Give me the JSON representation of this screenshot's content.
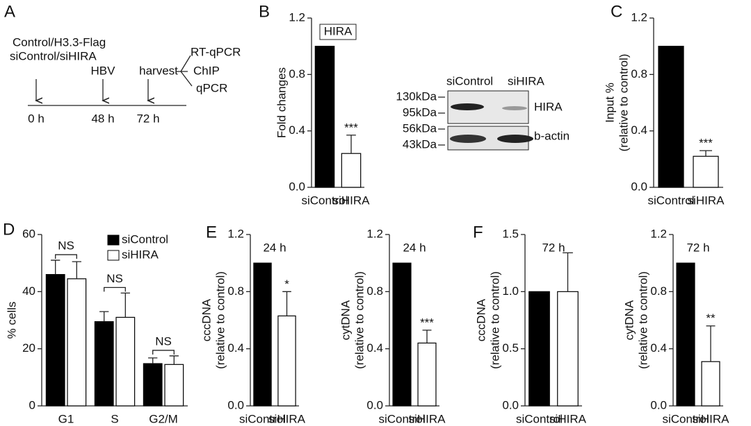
{
  "panels": [
    "A",
    "B",
    "C",
    "D",
    "E",
    "F"
  ],
  "diagram": {
    "conditions": [
      "Control/H3.3-Flag",
      "siControl/siHIRA"
    ],
    "events": [
      "HBV",
      "harvest"
    ],
    "outputs": [
      "RT-qPCR",
      "ChIP",
      "qPCR"
    ],
    "times": [
      "0 h",
      "48 h",
      "72 h"
    ]
  },
  "blot": {
    "lanes": [
      "siControl",
      "siHIRA"
    ],
    "markers": [
      "130kDa",
      "95kDa",
      "56kDa",
      "43kDa"
    ],
    "proteins": [
      "HIRA",
      "b-actin"
    ]
  },
  "chart_data": [
    {
      "type": "bar",
      "title": "HIRA",
      "title_boxed": true,
      "ylabel": [
        "Fold changes"
      ],
      "categories": [
        "siControl",
        "siHIRA"
      ],
      "values": [
        1,
        0.24
      ],
      "errors": [
        null,
        0.13
      ],
      "annotations": [
        null,
        "***"
      ],
      "colors": [
        "#000000",
        "#ffffff"
      ],
      "ylim": [
        0,
        1.2
      ],
      "yticks": [
        {
          "value": 0,
          "label": "0.0"
        },
        0.4,
        0.8,
        1.2
      ]
    },
    {
      "type": "bar",
      "ylabel": [
        "Input %",
        "(relative to control)"
      ],
      "categories": [
        "siControl",
        "siHIRA"
      ],
      "values": [
        1,
        0.22
      ],
      "errors": [
        null,
        0.04
      ],
      "annotations": [
        null,
        "***"
      ],
      "colors": [
        "#000000",
        "#ffffff"
      ],
      "ylim": [
        0,
        1.2
      ],
      "yticks": [
        {
          "value": 0,
          "label": "0.0"
        },
        0.4,
        0.8,
        1.2
      ]
    },
    {
      "type": "bar",
      "ylabel": [
        "% cells"
      ],
      "categories": [
        "G1",
        "S",
        "G2/M"
      ],
      "series": [
        {
          "name": "siControl",
          "color": "#000000",
          "values": [
            46,
            29.5,
            14.8
          ],
          "errors": [
            5,
            3.5,
            2
          ]
        },
        {
          "name": "siHIRA",
          "color": "#ffffff",
          "values": [
            44.5,
            31,
            14.5
          ],
          "errors": [
            6,
            8.5,
            3
          ]
        }
      ],
      "annotations": [
        "NS",
        "NS",
        "NS"
      ],
      "ylim": [
        0,
        60
      ],
      "yticks": [
        0,
        20,
        40,
        60
      ]
    },
    {
      "type": "bar",
      "title": "24 h",
      "ylabel": [
        "cccDNA",
        "(relative to control)"
      ],
      "categories": [
        "siControl",
        "siHIRA"
      ],
      "values": [
        1,
        0.63
      ],
      "errors": [
        null,
        0.17
      ],
      "annotations": [
        null,
        "*"
      ],
      "colors": [
        "#000000",
        "#ffffff"
      ],
      "ylim": [
        0,
        1.2
      ],
      "yticks": [
        {
          "value": 0,
          "label": "0.0"
        },
        0.4,
        0.8,
        1.2
      ]
    },
    {
      "type": "bar",
      "title": "24 h",
      "ylabel": [
        "cytDNA",
        "(relative to control)"
      ],
      "categories": [
        "siControl",
        "siHIRA"
      ],
      "values": [
        1,
        0.44
      ],
      "errors": [
        null,
        0.09
      ],
      "annotations": [
        null,
        "***"
      ],
      "colors": [
        "#000000",
        "#ffffff"
      ],
      "ylim": [
        0,
        1.2
      ],
      "yticks": [
        {
          "value": 0,
          "label": "0.0"
        },
        0.4,
        0.8,
        1.2
      ]
    },
    {
      "type": "bar",
      "title": "72 h",
      "ylabel": [
        "cccDNA",
        "(relative to control)"
      ],
      "categories": [
        "siControl",
        "siHIRA"
      ],
      "values": [
        1,
        1.0
      ],
      "errors": [
        null,
        0.34
      ],
      "colors": [
        "#000000",
        "#ffffff"
      ],
      "ylim": [
        0,
        1.5
      ],
      "yticks": [
        {
          "value": 0,
          "label": "0.0"
        },
        0.5,
        {
          "value": 1,
          "label": "1.0"
        },
        1.5
      ]
    },
    {
      "type": "bar",
      "title": "72 h",
      "ylabel": [
        "cytDNA",
        "(relative to control)"
      ],
      "categories": [
        "siControl",
        "siHIRA"
      ],
      "values": [
        1,
        0.31
      ],
      "errors": [
        null,
        0.25
      ],
      "annotations": [
        null,
        "**"
      ],
      "colors": [
        "#000000",
        "#ffffff"
      ],
      "ylim": [
        0,
        1.2
      ],
      "yticks": [
        {
          "value": 0,
          "label": "0.0"
        },
        0.4,
        0.8,
        1.2
      ]
    }
  ]
}
